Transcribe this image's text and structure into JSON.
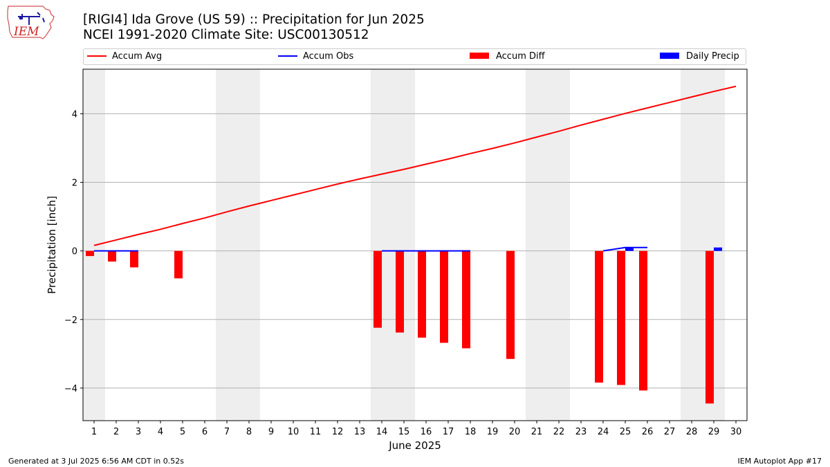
{
  "header": {
    "logo_text": "IEM",
    "title_line1": "[RIGI4] Ida Grove (US 59) :: Precipitation for Jun 2025",
    "title_line2": "NCEI 1991-2020 Climate Site: USC00130512"
  },
  "legend": {
    "items": [
      {
        "label": "Accum Avg",
        "kind": "line",
        "color": "#ff0000"
      },
      {
        "label": "Accum Obs",
        "kind": "line",
        "color": "#0000ff"
      },
      {
        "label": "Accum Diff",
        "kind": "bar",
        "color": "#ff0000"
      },
      {
        "label": "Daily Precip",
        "kind": "bar",
        "color": "#0000ff"
      }
    ]
  },
  "footer": {
    "left": "Generated at 3 Jul 2025 6:56 AM CDT in 0.52s",
    "right": "IEM Autoplot App #17"
  },
  "chart_data": {
    "type": "bar",
    "xlabel": "June 2025",
    "ylabel": "Precipitation [inch]",
    "xlim": [
      0.5,
      30.5
    ],
    "ylim": [
      -4.95,
      5.3
    ],
    "yticks": [
      -4,
      -2,
      0,
      2,
      4
    ],
    "ytick_labels": [
      "−4",
      "−2",
      "0",
      "2",
      "4"
    ],
    "categories": [
      1,
      2,
      3,
      4,
      5,
      6,
      7,
      8,
      9,
      10,
      11,
      12,
      13,
      14,
      15,
      16,
      17,
      18,
      19,
      20,
      21,
      22,
      23,
      24,
      25,
      26,
      27,
      28,
      29,
      30
    ],
    "grid": "horizontal",
    "legend_position": "top",
    "weekend_shading": [
      [
        0.5,
        1.5
      ],
      [
        6.5,
        8.5
      ],
      [
        13.5,
        15.5
      ],
      [
        20.5,
        22.5
      ],
      [
        27.5,
        29.5
      ]
    ],
    "shade_color": "#eeeeee",
    "series": [
      {
        "name": "Accum Avg",
        "kind": "line",
        "color": "#ff0000",
        "x": [
          1,
          2,
          3,
          4,
          5,
          6,
          7,
          8,
          9,
          10,
          11,
          12,
          13,
          14,
          15,
          16,
          17,
          18,
          19,
          20,
          21,
          22,
          23,
          24,
          25,
          26,
          27,
          28,
          29,
          30
        ],
        "values": [
          0.16,
          0.32,
          0.48,
          0.63,
          0.8,
          0.96,
          1.14,
          1.31,
          1.47,
          1.63,
          1.79,
          1.95,
          2.1,
          2.24,
          2.38,
          2.53,
          2.68,
          2.84,
          2.99,
          3.15,
          3.32,
          3.49,
          3.67,
          3.84,
          4.01,
          4.17,
          4.33,
          4.49,
          4.65,
          4.8
        ]
      },
      {
        "name": "Accum Obs",
        "kind": "line",
        "color": "#0000ff",
        "segments": [
          {
            "x": [
              1,
              2,
              3
            ],
            "values": [
              0,
              0,
              0
            ]
          },
          {
            "x": [
              14,
              15,
              16,
              17,
              18
            ],
            "values": [
              0,
              0,
              0,
              0,
              0
            ]
          },
          {
            "x": [
              24,
              25,
              26
            ],
            "values": [
              0,
              0.1,
              0.1
            ]
          }
        ]
      },
      {
        "name": "Accum Diff",
        "kind": "bar",
        "color": "#ff0000",
        "x": [
          1,
          2,
          3,
          5,
          14,
          15,
          16,
          17,
          18,
          20,
          24,
          25,
          26,
          29
        ],
        "values": [
          -0.15,
          -0.31,
          -0.48,
          -0.8,
          -2.24,
          -2.38,
          -2.53,
          -2.68,
          -2.84,
          -3.15,
          -3.84,
          -3.91,
          -4.07,
          -4.45
        ]
      },
      {
        "name": "Daily Precip",
        "kind": "bar",
        "color": "#0000ff",
        "x": [
          25,
          29
        ],
        "values": [
          0.1,
          0.1
        ]
      }
    ]
  }
}
